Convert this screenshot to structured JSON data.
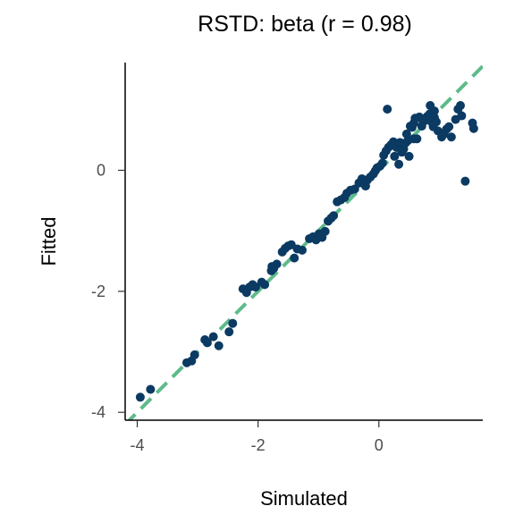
{
  "chart_data": {
    "type": "scatter",
    "title": "RSTD: beta (r = 0.98)",
    "xlabel": "Simulated",
    "ylabel": "Fitted",
    "xlim": [
      -4.2,
      1.72
    ],
    "ylim": [
      -4.13,
      1.78
    ],
    "xticks": [
      -4,
      -2,
      0
    ],
    "yticks": [
      -4,
      -2,
      0
    ],
    "grid": false,
    "point_color": "#0b3a63",
    "line_color": "#5dbb8a",
    "reference_line": {
      "slope": 1,
      "intercept": 0,
      "style": "dashed"
    },
    "points": [
      [
        -3.95,
        -3.75
      ],
      [
        -3.78,
        -3.62
      ],
      [
        -3.18,
        -3.18
      ],
      [
        -3.1,
        -3.15
      ],
      [
        -3.05,
        -3.05
      ],
      [
        -2.88,
        -2.8
      ],
      [
        -2.84,
        -2.85
      ],
      [
        -2.74,
        -2.75
      ],
      [
        -2.65,
        -2.9
      ],
      [
        -2.48,
        -2.67
      ],
      [
        -2.42,
        -2.53
      ],
      [
        -2.25,
        -1.96
      ],
      [
        -2.19,
        -2.02
      ],
      [
        -2.14,
        -1.93
      ],
      [
        -2.09,
        -1.89
      ],
      [
        -2.04,
        -1.93
      ],
      [
        -1.94,
        -1.85
      ],
      [
        -1.89,
        -1.89
      ],
      [
        -1.78,
        -1.66
      ],
      [
        -1.77,
        -1.59
      ],
      [
        -1.74,
        -1.62
      ],
      [
        -1.69,
        -1.55
      ],
      [
        -1.6,
        -1.35
      ],
      [
        -1.55,
        -1.29
      ],
      [
        -1.5,
        -1.25
      ],
      [
        -1.45,
        -1.23
      ],
      [
        -1.4,
        -1.45
      ],
      [
        -1.35,
        -1.3
      ],
      [
        -1.27,
        -1.32
      ],
      [
        -1.15,
        -1.13
      ],
      [
        -1.09,
        -1.1
      ],
      [
        -1.04,
        -1.15
      ],
      [
        -0.99,
        -1.05
      ],
      [
        -0.94,
        -1.11
      ],
      [
        -0.89,
        -1.01
      ],
      [
        -0.84,
        -0.84
      ],
      [
        -0.79,
        -0.79
      ],
      [
        -0.75,
        -0.75
      ],
      [
        -0.69,
        -0.52
      ],
      [
        -0.63,
        -0.49
      ],
      [
        -0.57,
        -0.45
      ],
      [
        -0.53,
        -0.38
      ],
      [
        -0.47,
        -0.33
      ],
      [
        -0.4,
        -0.31
      ],
      [
        -0.33,
        -0.21
      ],
      [
        -0.28,
        -0.14
      ],
      [
        -0.24,
        -0.19
      ],
      [
        -0.22,
        -0.26
      ],
      [
        -0.19,
        -0.16
      ],
      [
        -0.14,
        -0.11
      ],
      [
        -0.09,
        -0.06
      ],
      [
        -0.06,
        -0.01
      ],
      [
        -0.03,
        0.04
      ],
      [
        0.02,
        0.07
      ],
      [
        0.06,
        0.12
      ],
      [
        0.08,
        0.25
      ],
      [
        0.12,
        0.32
      ],
      [
        0.16,
        0.38
      ],
      [
        0.14,
        1.01
      ],
      [
        0.2,
        0.42
      ],
      [
        0.24,
        0.47
      ],
      [
        0.26,
        0.23
      ],
      [
        0.29,
        0.38
      ],
      [
        0.33,
        0.1
      ],
      [
        0.35,
        0.46
      ],
      [
        0.38,
        0.3
      ],
      [
        0.41,
        0.35
      ],
      [
        0.44,
        0.45
      ],
      [
        0.46,
        0.6
      ],
      [
        0.48,
        0.49
      ],
      [
        0.5,
        0.23
      ],
      [
        0.52,
        0.73
      ],
      [
        0.55,
        0.71
      ],
      [
        0.58,
        0.78
      ],
      [
        0.6,
        0.86
      ],
      [
        0.63,
        0.52
      ],
      [
        0.67,
        0.88
      ],
      [
        0.71,
        0.85
      ],
      [
        0.76,
        0.82
      ],
      [
        0.8,
        0.89
      ],
      [
        0.84,
        0.93
      ],
      [
        0.88,
        0.79
      ],
      [
        0.9,
        0.72
      ],
      [
        0.92,
        0.87
      ],
      [
        0.95,
        0.8
      ],
      [
        0.98,
        0.65
      ],
      [
        1.04,
        0.55
      ],
      [
        1.08,
        0.6
      ],
      [
        1.12,
        0.68
      ],
      [
        1.16,
        0.72
      ],
      [
        1.2,
        0.55
      ],
      [
        1.27,
        0.84
      ],
      [
        1.31,
        1.01
      ],
      [
        1.35,
        1.07
      ],
      [
        1.37,
        0.9
      ],
      [
        1.43,
        -0.18
      ],
      [
        1.55,
        0.78
      ],
      [
        1.57,
        0.69
      ],
      [
        0.85,
        1.07
      ],
      [
        0.92,
        0.98
      ],
      [
        0.71,
        0.73
      ],
      [
        0.58,
        0.52
      ]
    ]
  }
}
